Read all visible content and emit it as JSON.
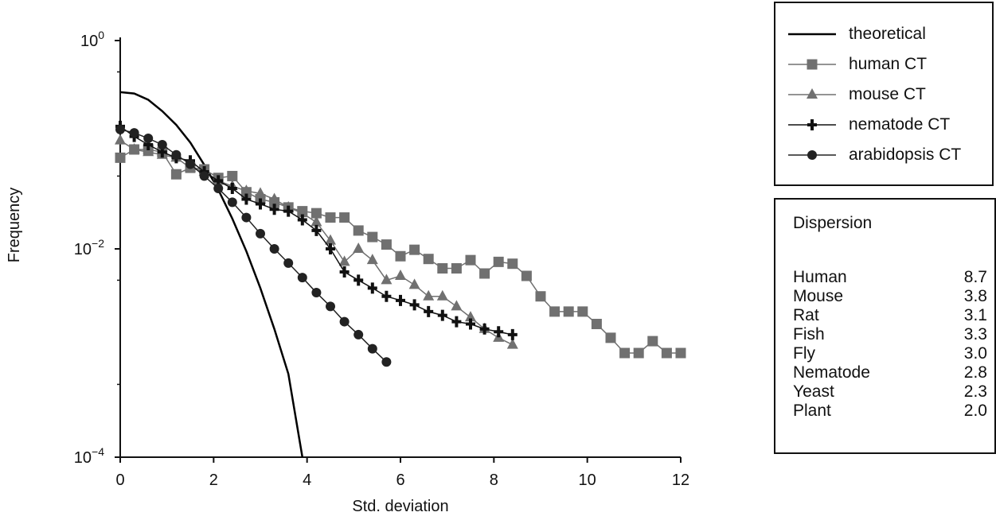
{
  "chart_data": {
    "type": "line",
    "xlabel": "Std. deviation",
    "ylabel": "Frequency",
    "yscale": "log",
    "xlim": [
      0,
      12
    ],
    "ylim": [
      0.0001,
      1
    ],
    "x_ticks": [
      "0",
      "2",
      "4",
      "6",
      "8",
      "10",
      "12"
    ],
    "y_ticks": [
      {
        "base": "10",
        "exp": "0",
        "value": 1
      },
      {
        "base": "10",
        "exp": "−2",
        "value": 0.01
      },
      {
        "base": "10",
        "exp": "−4",
        "value": 0.0001
      }
    ],
    "legend_position": "top-right",
    "series": [
      {
        "name": "theoretical",
        "marker": "none",
        "color": "#000000",
        "points": [
          [
            0,
            0.32
          ],
          [
            0.3,
            0.31
          ],
          [
            0.6,
            0.27
          ],
          [
            0.9,
            0.21
          ],
          [
            1.2,
            0.155
          ],
          [
            1.5,
            0.105
          ],
          [
            1.8,
            0.064
          ],
          [
            2.1,
            0.037
          ],
          [
            2.4,
            0.0195
          ],
          [
            2.7,
            0.0095
          ],
          [
            3.0,
            0.0042
          ],
          [
            3.3,
            0.0017
          ],
          [
            3.6,
            0.00063
          ],
          [
            3.9,
            0.0001
          ]
        ]
      },
      {
        "name": "human CT",
        "marker": "square",
        "color": "#707070",
        "points": [
          [
            0,
            0.075
          ],
          [
            0.3,
            0.09
          ],
          [
            0.6,
            0.09
          ],
          [
            0.9,
            0.085
          ],
          [
            1.2,
            0.052
          ],
          [
            1.5,
            0.06
          ],
          [
            1.8,
            0.058
          ],
          [
            2.1,
            0.048
          ],
          [
            2.4,
            0.05
          ],
          [
            2.7,
            0.035
          ],
          [
            3.0,
            0.03
          ],
          [
            3.3,
            0.028
          ],
          [
            3.6,
            0.025
          ],
          [
            3.9,
            0.023
          ],
          [
            4.2,
            0.022
          ],
          [
            4.5,
            0.02
          ],
          [
            4.8,
            0.02
          ],
          [
            5.1,
            0.015
          ],
          [
            5.4,
            0.013
          ],
          [
            5.7,
            0.011
          ],
          [
            6.0,
            0.0085
          ],
          [
            6.3,
            0.0098
          ],
          [
            6.6,
            0.008
          ],
          [
            6.9,
            0.0065
          ],
          [
            7.2,
            0.0065
          ],
          [
            7.5,
            0.0078
          ],
          [
            7.8,
            0.0058
          ],
          [
            8.1,
            0.0075
          ],
          [
            8.4,
            0.0072
          ],
          [
            8.7,
            0.0055
          ],
          [
            9.0,
            0.0035
          ],
          [
            9.3,
            0.0025
          ],
          [
            9.6,
            0.0025
          ],
          [
            9.9,
            0.0025
          ],
          [
            10.2,
            0.0019
          ],
          [
            10.5,
            0.0014
          ],
          [
            10.8,
            0.001
          ],
          [
            11.1,
            0.001
          ],
          [
            11.4,
            0.0013
          ],
          [
            11.7,
            0.001
          ],
          [
            12.0,
            0.001
          ]
        ]
      },
      {
        "name": "mouse CT",
        "marker": "triangle",
        "color": "#707070",
        "points": [
          [
            0,
            0.11
          ],
          [
            0.3,
            0.09
          ],
          [
            0.6,
            0.085
          ],
          [
            0.9,
            0.08
          ],
          [
            1.2,
            0.075
          ],
          [
            1.5,
            0.06
          ],
          [
            1.8,
            0.055
          ],
          [
            2.1,
            0.045
          ],
          [
            2.4,
            0.04
          ],
          [
            2.7,
            0.036
          ],
          [
            3.0,
            0.034
          ],
          [
            3.3,
            0.03
          ],
          [
            3.6,
            0.025
          ],
          [
            3.9,
            0.022
          ],
          [
            4.2,
            0.018
          ],
          [
            4.5,
            0.012
          ],
          [
            4.8,
            0.0075
          ],
          [
            5.1,
            0.01
          ],
          [
            5.4,
            0.0078
          ],
          [
            5.7,
            0.005
          ],
          [
            6.0,
            0.0055
          ],
          [
            6.3,
            0.0045
          ],
          [
            6.6,
            0.0035
          ],
          [
            6.9,
            0.0035
          ],
          [
            7.2,
            0.0028
          ],
          [
            7.5,
            0.0022
          ],
          [
            7.8,
            0.0017
          ],
          [
            8.1,
            0.0014
          ],
          [
            8.4,
            0.0012
          ]
        ]
      },
      {
        "name": "nematode CT",
        "marker": "cross",
        "color": "#111111",
        "points": [
          [
            0,
            0.15
          ],
          [
            0.3,
            0.12
          ],
          [
            0.6,
            0.1
          ],
          [
            0.9,
            0.085
          ],
          [
            1.2,
            0.075
          ],
          [
            1.5,
            0.07
          ],
          [
            1.8,
            0.055
          ],
          [
            2.1,
            0.045
          ],
          [
            2.4,
            0.038
          ],
          [
            2.7,
            0.03
          ],
          [
            3.0,
            0.027
          ],
          [
            3.3,
            0.024
          ],
          [
            3.6,
            0.023
          ],
          [
            3.9,
            0.019
          ],
          [
            4.2,
            0.015
          ],
          [
            4.5,
            0.01
          ],
          [
            4.8,
            0.006
          ],
          [
            5.1,
            0.005
          ],
          [
            5.4,
            0.0042
          ],
          [
            5.7,
            0.0035
          ],
          [
            6.0,
            0.0032
          ],
          [
            6.3,
            0.0029
          ],
          [
            6.6,
            0.0025
          ],
          [
            6.9,
            0.0023
          ],
          [
            7.2,
            0.002
          ],
          [
            7.5,
            0.0019
          ],
          [
            7.8,
            0.0017
          ],
          [
            8.1,
            0.0016
          ],
          [
            8.4,
            0.0015
          ]
        ]
      },
      {
        "name": "arabidopsis CT",
        "marker": "circle",
        "color": "#222222",
        "points": [
          [
            0,
            0.14
          ],
          [
            0.3,
            0.13
          ],
          [
            0.6,
            0.115
          ],
          [
            0.9,
            0.1
          ],
          [
            1.2,
            0.08
          ],
          [
            1.5,
            0.065
          ],
          [
            1.8,
            0.05
          ],
          [
            2.1,
            0.038
          ],
          [
            2.4,
            0.028
          ],
          [
            2.7,
            0.02
          ],
          [
            3.0,
            0.014
          ],
          [
            3.3,
            0.01
          ],
          [
            3.6,
            0.0073
          ],
          [
            3.9,
            0.0053
          ],
          [
            4.2,
            0.0038
          ],
          [
            4.5,
            0.0028
          ],
          [
            4.8,
            0.002
          ],
          [
            5.1,
            0.0015
          ],
          [
            5.4,
            0.0011
          ],
          [
            5.7,
            0.00082
          ]
        ]
      }
    ]
  },
  "dispersion": {
    "title": "Dispersion",
    "rows": [
      {
        "name": "Human",
        "value": "8.7"
      },
      {
        "name": "Mouse",
        "value": "3.8"
      },
      {
        "name": "Rat",
        "value": "3.1"
      },
      {
        "name": "Fish",
        "value": "3.3"
      },
      {
        "name": "Fly",
        "value": "3.0"
      },
      {
        "name": "Nematode",
        "value": "2.8"
      },
      {
        "name": "Yeast",
        "value": "2.3"
      },
      {
        "name": "Plant",
        "value": "2.0"
      }
    ]
  }
}
